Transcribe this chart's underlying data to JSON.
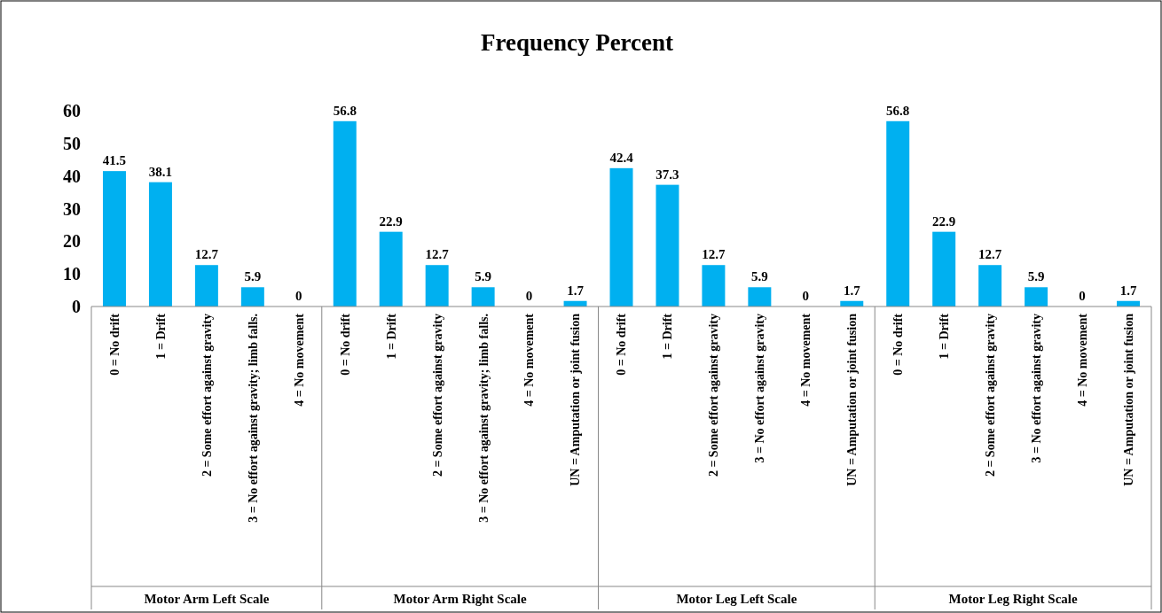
{
  "chart_data": {
    "type": "bar",
    "title": "Frequency Percent",
    "categories": [
      "0 = No drift",
      "1 = Drift",
      "2 = Some effort against gravity",
      "3 = No effort against gravity; limb falls.",
      "4 = No movement",
      "0 = No drift",
      "1 = Drift",
      "2 = Some effort against gravity",
      "3 = No effort against gravity; limb falls.",
      "4 = No movement",
      "UN = Amputation or joint fusion",
      "0 = No drift",
      "1 = Drift",
      "2 = Some effort against gravity",
      "3 = No effort against gravity",
      "4 = No movement",
      "UN = Amputation or joint fusion",
      "0 = No drift",
      "1 = Drift",
      "2 = Some effort against gravity",
      "3 = No effort against gravity",
      "4 = No movement",
      "UN = Amputation or joint fusion"
    ],
    "values": [
      41.5,
      38.1,
      12.7,
      5.9,
      0,
      56.8,
      22.9,
      12.7,
      5.9,
      0,
      1.7,
      42.4,
      37.3,
      12.7,
      5.9,
      0,
      1.7,
      56.8,
      22.9,
      12.7,
      5.9,
      0,
      1.7
    ],
    "color": "#00b0f0",
    "ylim": [
      0,
      60
    ],
    "yticks": [
      0,
      10,
      20,
      30,
      40,
      50,
      60
    ],
    "data_labels": true,
    "annotations": [
      "Motor Arm Left Scale",
      "Motor Arm Right Scale",
      "Motor Leg Left Scale",
      "Motor Leg Right Scale"
    ]
  }
}
